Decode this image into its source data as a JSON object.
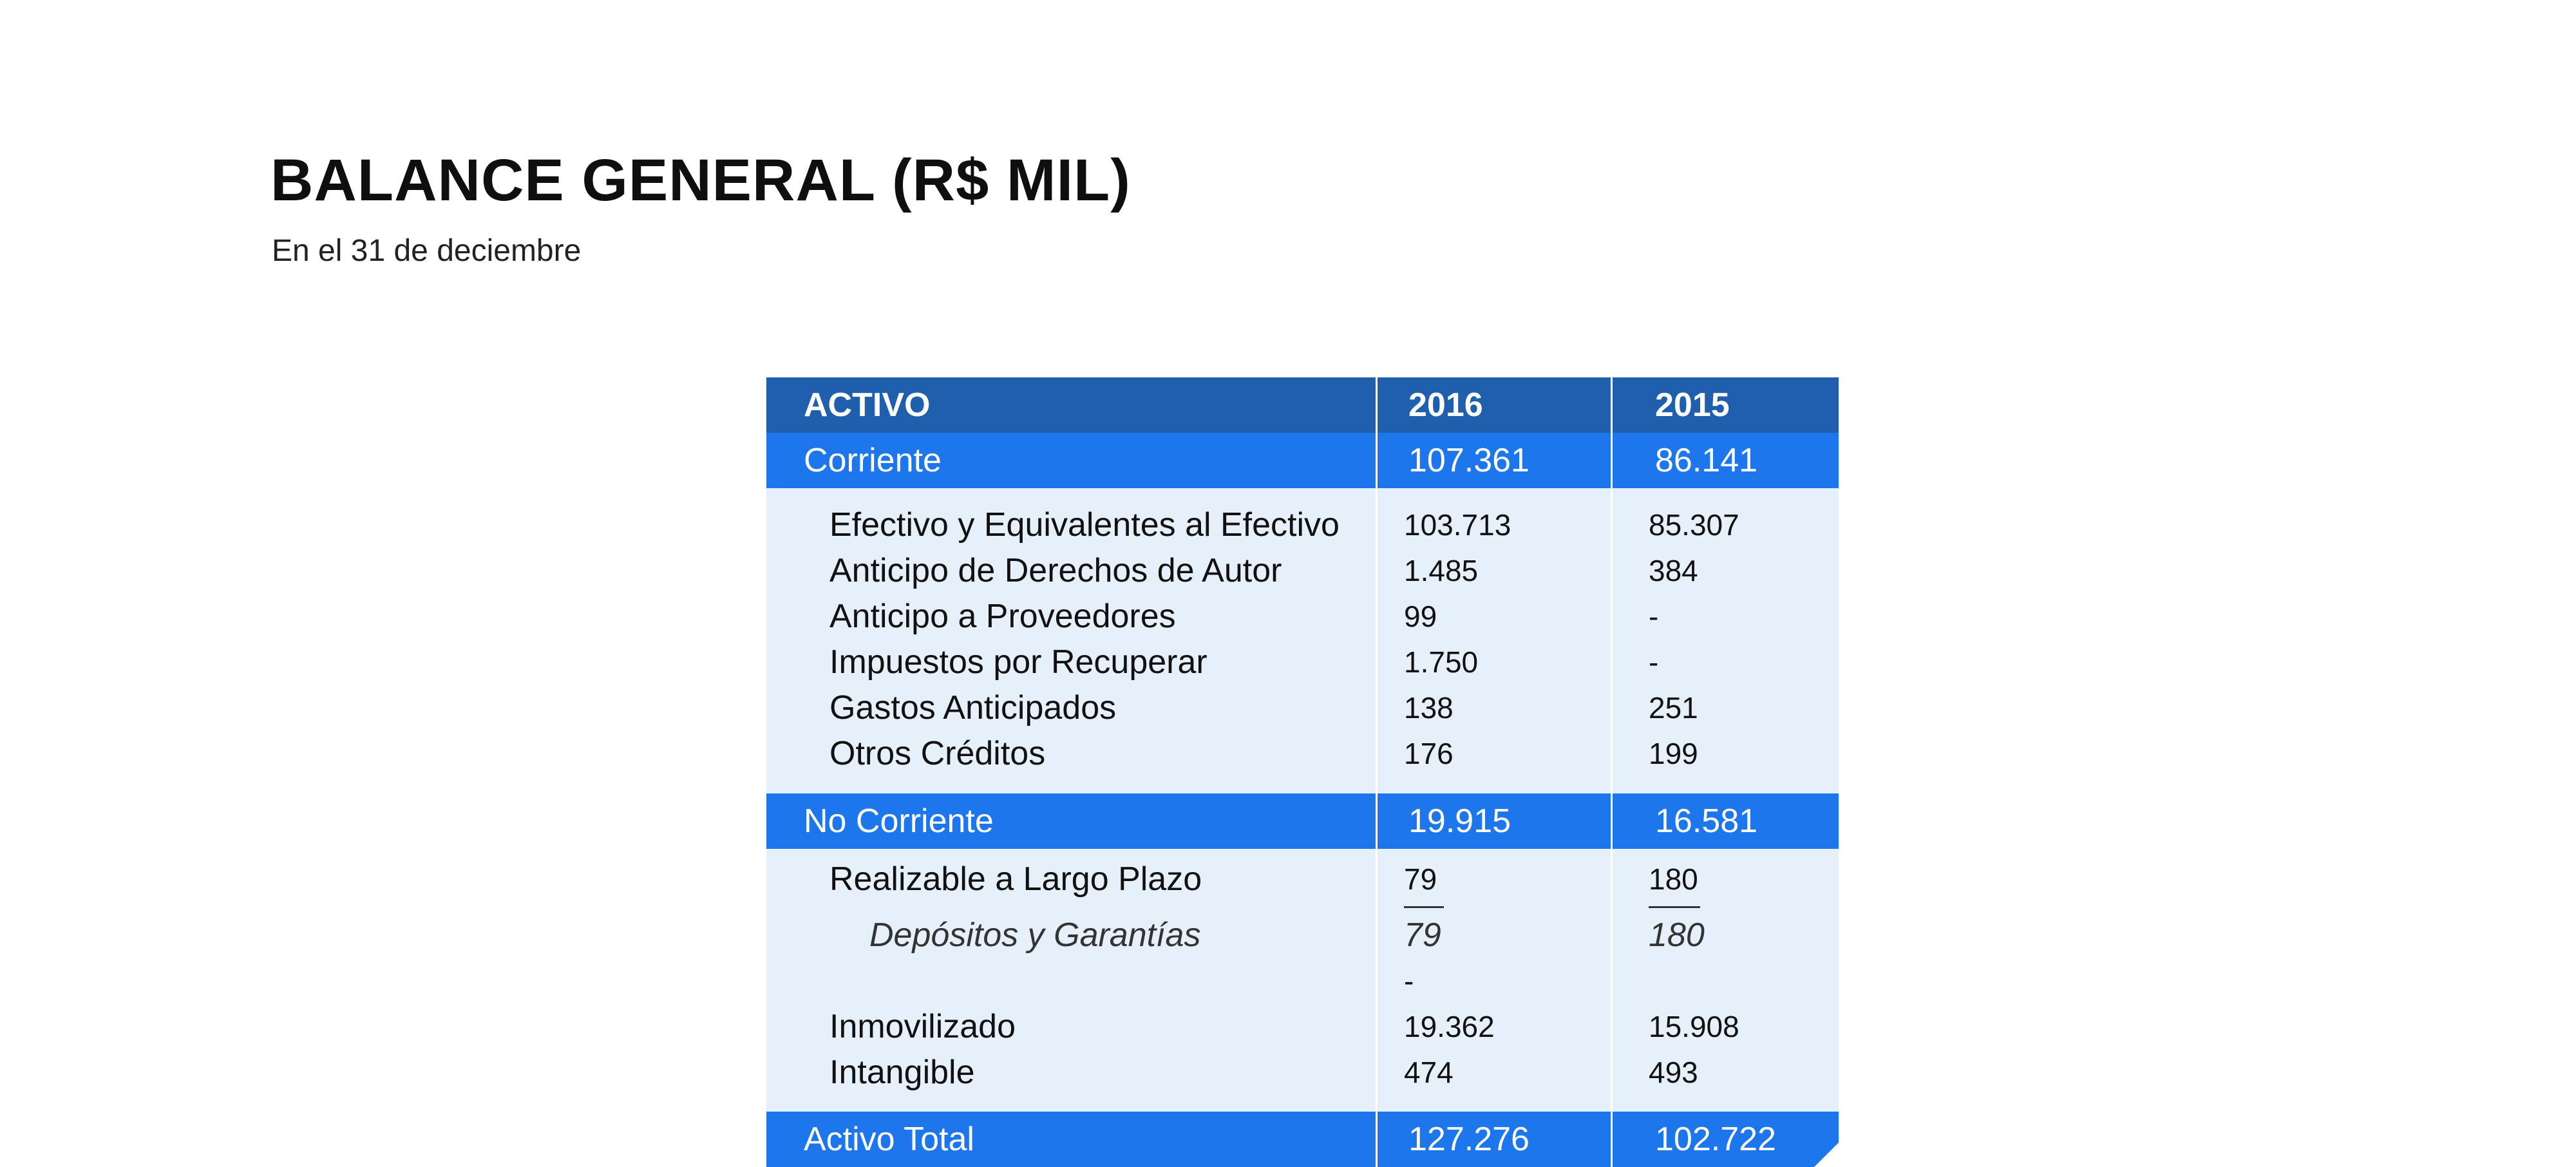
{
  "title": "BALANCE GENERAL (R$ MIL)",
  "subtitle": "En el 31 de deciembre",
  "table": {
    "header": {
      "label": "ACTIVO",
      "y1": "2016",
      "y2": "2015"
    },
    "corriente": {
      "label": "Corriente",
      "y1": "107.361",
      "y2": "86.141",
      "items": [
        {
          "label": "Efectivo y Equivalentes al Efectivo",
          "y1": "103.713",
          "y2": "85.307"
        },
        {
          "label": "Anticipo de Derechos de Autor",
          "y1": "1.485",
          "y2": "384"
        },
        {
          "label": "Anticipo a Proveedores",
          "y1": "99",
          "y2": "-"
        },
        {
          "label": "Impuestos por Recuperar",
          "y1": "1.750",
          "y2": "-"
        },
        {
          "label": "Gastos Anticipados",
          "y1": "138",
          "y2": "251"
        },
        {
          "label": "Otros Créditos",
          "y1": "176",
          "y2": "199"
        }
      ]
    },
    "no_corriente": {
      "label": "No Corriente",
      "y1": "19.915",
      "y2": "16.581",
      "realizable": {
        "label": "Realizable a Largo Plazo",
        "y1": "79",
        "y2": "180"
      },
      "depositos": {
        "label": "Depósitos y Garantías",
        "y1": "79",
        "y2": "180"
      },
      "dash": {
        "y1": "-"
      },
      "inmovilizado": {
        "label": "Inmovilizado",
        "y1": "19.362",
        "y2": "15.908"
      },
      "intangible": {
        "label": "Intangible",
        "y1": "474",
        "y2": "493"
      }
    },
    "total": {
      "label": "Activo Total",
      "y1": "127.276",
      "y2": "102.722"
    }
  }
}
